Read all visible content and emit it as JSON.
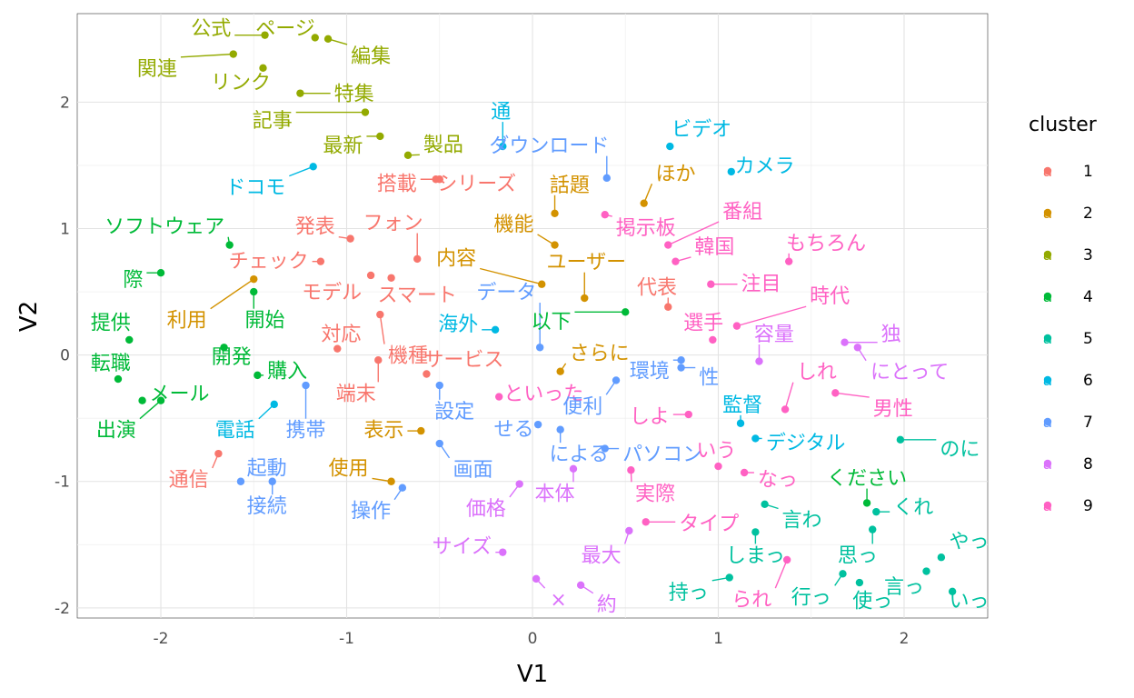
{
  "chart_data": {
    "type": "scatter",
    "title": "",
    "xlabel": "V1",
    "ylabel": "V2",
    "xlim": [
      -2.45,
      2.45
    ],
    "ylim": [
      -2.08,
      2.7
    ],
    "x_ticks": [
      -2,
      -1,
      0,
      1,
      2
    ],
    "y_ticks": [
      -2,
      -1,
      0,
      1,
      2
    ],
    "x_tick_labels": [
      "-2",
      "-1",
      "0",
      "1",
      "2"
    ],
    "y_tick_labels": [
      "-2",
      "-1",
      "0",
      "1",
      "2"
    ],
    "grid": true,
    "legend": {
      "title": "cluster",
      "placement": "right",
      "glyph": "a",
      "entries": [
        {
          "label": "1",
          "color": "#F8766D"
        },
        {
          "label": "2",
          "color": "#D39200"
        },
        {
          "label": "3",
          "color": "#93AA00"
        },
        {
          "label": "4",
          "color": "#00BA38"
        },
        {
          "label": "5",
          "color": "#00C19F"
        },
        {
          "label": "6",
          "color": "#00B9E3"
        },
        {
          "label": "7",
          "color": "#619CFF"
        },
        {
          "label": "8",
          "color": "#DB72FB"
        },
        {
          "label": "9",
          "color": "#FF61C3"
        }
      ]
    },
    "points": [
      {
        "label": "公式",
        "cluster": 3,
        "x": -1.44,
        "y": 2.53,
        "lx": -1.73,
        "ly": 2.59
      },
      {
        "label": "ページ",
        "cluster": 3,
        "x": -1.17,
        "y": 2.51,
        "lx": -1.33,
        "ly": 2.59
      },
      {
        "label": "編集",
        "cluster": 3,
        "x": -1.1,
        "y": 2.5,
        "lx": -0.87,
        "ly": 2.37
      },
      {
        "label": "関連",
        "cluster": 3,
        "x": -1.61,
        "y": 2.38,
        "lx": -2.02,
        "ly": 2.27
      },
      {
        "label": "リンク",
        "cluster": 3,
        "x": -1.45,
        "y": 2.27,
        "lx": -1.57,
        "ly": 2.16
      },
      {
        "label": "特集",
        "cluster": 3,
        "x": -1.25,
        "y": 2.07,
        "lx": -0.96,
        "ly": 2.07
      },
      {
        "label": "記事",
        "cluster": 3,
        "x": -0.9,
        "y": 1.92,
        "lx": -1.4,
        "ly": 1.86
      },
      {
        "label": "最新",
        "cluster": 3,
        "x": -0.82,
        "y": 1.73,
        "lx": -1.02,
        "ly": 1.66
      },
      {
        "label": "製品",
        "cluster": 3,
        "x": -0.67,
        "y": 1.58,
        "lx": -0.48,
        "ly": 1.67
      },
      {
        "label": "ドコモ",
        "cluster": 6,
        "x": -1.18,
        "y": 1.49,
        "lx": -1.49,
        "ly": 1.33
      },
      {
        "label": "通",
        "cluster": 6,
        "x": -0.16,
        "y": 1.65,
        "lx": -0.17,
        "ly": 1.93
      },
      {
        "label": "ダウンロード",
        "cluster": 7,
        "x": 0.4,
        "y": 1.4,
        "lx": 0.09,
        "ly": 1.66
      },
      {
        "label": "ビデオ",
        "cluster": 6,
        "x": 0.74,
        "y": 1.65,
        "lx": 0.91,
        "ly": 1.79
      },
      {
        "label": "カメラ",
        "cluster": 6,
        "x": 1.07,
        "y": 1.45,
        "lx": 1.25,
        "ly": 1.5
      },
      {
        "label": "ほか",
        "cluster": 2,
        "x": 0.6,
        "y": 1.2,
        "lx": 0.77,
        "ly": 1.44
      },
      {
        "label": "搭載",
        "cluster": 1,
        "x": -0.52,
        "y": 1.39,
        "lx": -0.73,
        "ly": 1.36
      },
      {
        "label": "シリーズ",
        "cluster": 1,
        "x": -0.5,
        "y": 1.39,
        "lx": -0.3,
        "ly": 1.36
      },
      {
        "label": "話題",
        "cluster": 2,
        "x": 0.12,
        "y": 1.12,
        "lx": 0.2,
        "ly": 1.35
      },
      {
        "label": "番組",
        "cluster": 9,
        "x": 0.73,
        "y": 0.87,
        "lx": 1.13,
        "ly": 1.14
      },
      {
        "label": "発表",
        "cluster": 1,
        "x": -0.98,
        "y": 0.92,
        "lx": -1.17,
        "ly": 1.02
      },
      {
        "label": "フォン",
        "cluster": 1,
        "x": -0.62,
        "y": 0.76,
        "lx": -0.75,
        "ly": 1.05
      },
      {
        "label": "ソフトウェア",
        "cluster": 4,
        "x": -1.63,
        "y": 0.87,
        "lx": -1.98,
        "ly": 1.02
      },
      {
        "label": "機能",
        "cluster": 2,
        "x": 0.12,
        "y": 0.87,
        "lx": -0.1,
        "ly": 1.04
      },
      {
        "label": "掲示板",
        "cluster": 9,
        "x": 0.39,
        "y": 1.11,
        "lx": 0.61,
        "ly": 1.01
      },
      {
        "label": "韓国",
        "cluster": 9,
        "x": 0.77,
        "y": 0.74,
        "lx": 0.98,
        "ly": 0.86
      },
      {
        "label": "もちろん",
        "cluster": 9,
        "x": 1.38,
        "y": 0.74,
        "lx": 1.58,
        "ly": 0.89
      },
      {
        "label": "チェック",
        "cluster": 1,
        "x": -1.14,
        "y": 0.74,
        "lx": -1.42,
        "ly": 0.75
      },
      {
        "label": "内容",
        "cluster": 2,
        "x": 0.05,
        "y": 0.56,
        "lx": -0.41,
        "ly": 0.77
      },
      {
        "label": "ユーザー",
        "cluster": 2,
        "x": 0.28,
        "y": 0.45,
        "lx": 0.29,
        "ly": 0.74
      },
      {
        "label": "際",
        "cluster": 4,
        "x": -2.0,
        "y": 0.65,
        "lx": -2.15,
        "ly": 0.6
      },
      {
        "label": "モデル",
        "cluster": 1,
        "x": -0.87,
        "y": 0.63,
        "lx": -1.08,
        "ly": 0.5
      },
      {
        "label": "スマート",
        "cluster": 1,
        "x": -0.76,
        "y": 0.61,
        "lx": -0.62,
        "ly": 0.48
      },
      {
        "label": "データ",
        "cluster": 7,
        "x": 0.04,
        "y": 0.06,
        "lx": -0.14,
        "ly": 0.5
      },
      {
        "label": "代表",
        "cluster": 1,
        "x": 0.73,
        "y": 0.38,
        "lx": 0.67,
        "ly": 0.54
      },
      {
        "label": "注目",
        "cluster": 9,
        "x": 0.96,
        "y": 0.56,
        "lx": 1.23,
        "ly": 0.57
      },
      {
        "label": "時代",
        "cluster": 9,
        "x": 1.1,
        "y": 0.23,
        "lx": 1.6,
        "ly": 0.47
      },
      {
        "label": "提供",
        "cluster": 4,
        "x": -2.17,
        "y": 0.12,
        "lx": -2.27,
        "ly": 0.26
      },
      {
        "label": "利用",
        "cluster": 2,
        "x": -1.5,
        "y": 0.6,
        "lx": -1.86,
        "ly": 0.28
      },
      {
        "label": "開始",
        "cluster": 4,
        "x": -1.5,
        "y": 0.5,
        "lx": -1.44,
        "ly": 0.28
      },
      {
        "label": "海外",
        "cluster": 6,
        "x": -0.2,
        "y": 0.2,
        "lx": -0.4,
        "ly": 0.25
      },
      {
        "label": "以下",
        "cluster": 4,
        "x": 0.5,
        "y": 0.34,
        "lx": 0.1,
        "ly": 0.27
      },
      {
        "label": "選手",
        "cluster": 9,
        "x": 0.97,
        "y": 0.12,
        "lx": 0.92,
        "ly": 0.26
      },
      {
        "label": "容量",
        "cluster": 8,
        "x": 1.22,
        "y": -0.05,
        "lx": 1.3,
        "ly": 0.17
      },
      {
        "label": "独",
        "cluster": 8,
        "x": 1.68,
        "y": 0.1,
        "lx": 1.93,
        "ly": 0.17
      },
      {
        "label": "対応",
        "cluster": 1,
        "x": -1.05,
        "y": 0.05,
        "lx": -1.03,
        "ly": 0.17
      },
      {
        "label": "機種",
        "cluster": 1,
        "x": -0.82,
        "y": 0.32,
        "lx": -0.67,
        "ly": 0.0
      },
      {
        "label": "サービス",
        "cluster": 1,
        "x": -0.57,
        "y": -0.15,
        "lx": -0.37,
        "ly": -0.03
      },
      {
        "label": "さらに",
        "cluster": 2,
        "x": 0.15,
        "y": -0.13,
        "lx": 0.36,
        "ly": 0.02
      },
      {
        "label": "転職",
        "cluster": 4,
        "x": -2.23,
        "y": -0.19,
        "lx": -2.27,
        "ly": -0.06
      },
      {
        "label": "開発",
        "cluster": 4,
        "x": -1.66,
        "y": 0.06,
        "lx": -1.62,
        "ly": -0.01
      },
      {
        "label": "購入",
        "cluster": 4,
        "x": -1.48,
        "y": -0.16,
        "lx": -1.32,
        "ly": -0.12
      },
      {
        "label": "環境",
        "cluster": 7,
        "x": 0.8,
        "y": -0.04,
        "lx": 0.63,
        "ly": -0.12
      },
      {
        "label": "性",
        "cluster": 7,
        "x": 0.8,
        "y": -0.1,
        "lx": 0.95,
        "ly": -0.17
      },
      {
        "label": "しれ",
        "cluster": 9,
        "x": 1.36,
        "y": -0.43,
        "lx": 1.53,
        "ly": -0.13
      },
      {
        "label": "にとって",
        "cluster": 8,
        "x": 1.75,
        "y": 0.06,
        "lx": 2.03,
        "ly": -0.13
      },
      {
        "label": "端末",
        "cluster": 1,
        "x": -0.83,
        "y": -0.04,
        "lx": -0.95,
        "ly": -0.3
      },
      {
        "label": "メール",
        "cluster": 4,
        "x": -2.1,
        "y": -0.36,
        "lx": -1.9,
        "ly": -0.3
      },
      {
        "label": "といった",
        "cluster": 9,
        "x": -0.18,
        "y": -0.33,
        "lx": 0.06,
        "ly": -0.3
      },
      {
        "label": "設定",
        "cluster": 7,
        "x": -0.5,
        "y": -0.24,
        "lx": -0.42,
        "ly": -0.44
      },
      {
        "label": "便利",
        "cluster": 7,
        "x": 0.45,
        "y": -0.2,
        "lx": 0.27,
        "ly": -0.4
      },
      {
        "label": "監督",
        "cluster": 6,
        "x": 1.12,
        "y": -0.54,
        "lx": 1.13,
        "ly": -0.39
      },
      {
        "label": "男性",
        "cluster": 9,
        "x": 1.63,
        "y": -0.3,
        "lx": 1.94,
        "ly": -0.42
      },
      {
        "label": "しよ",
        "cluster": 9,
        "x": 0.84,
        "y": -0.47,
        "lx": 0.63,
        "ly": -0.48
      },
      {
        "label": "電話",
        "cluster": 6,
        "x": -1.39,
        "y": -0.39,
        "lx": -1.6,
        "ly": -0.59
      },
      {
        "label": "携帯",
        "cluster": 7,
        "x": -1.22,
        "y": -0.24,
        "lx": -1.22,
        "ly": -0.59
      },
      {
        "label": "表示",
        "cluster": 2,
        "x": -0.6,
        "y": -0.6,
        "lx": -0.8,
        "ly": -0.59
      },
      {
        "label": "せる",
        "cluster": 7,
        "x": 0.03,
        "y": -0.55,
        "lx": -0.1,
        "ly": -0.58
      },
      {
        "label": "出演",
        "cluster": 4,
        "x": -2.0,
        "y": -0.36,
        "lx": -2.24,
        "ly": -0.59
      },
      {
        "label": "デジタル",
        "cluster": 6,
        "x": 1.2,
        "y": -0.66,
        "lx": 1.47,
        "ly": -0.69
      },
      {
        "label": "のに",
        "cluster": 5,
        "x": 1.98,
        "y": -0.67,
        "lx": 2.3,
        "ly": -0.74
      },
      {
        "label": "による",
        "cluster": 7,
        "x": 0.15,
        "y": -0.59,
        "lx": 0.25,
        "ly": -0.78
      },
      {
        "label": "パソコン",
        "cluster": 7,
        "x": 0.39,
        "y": -0.74,
        "lx": 0.7,
        "ly": -0.78
      },
      {
        "label": "いう",
        "cluster": 9,
        "x": 1.0,
        "y": -0.88,
        "lx": 0.99,
        "ly": -0.75
      },
      {
        "label": "通信",
        "cluster": 1,
        "x": -1.69,
        "y": -0.78,
        "lx": -1.85,
        "ly": -0.98
      },
      {
        "label": "起動",
        "cluster": 7,
        "x": -1.57,
        "y": -1.0,
        "lx": -1.43,
        "ly": -0.89
      },
      {
        "label": "使用",
        "cluster": 2,
        "x": -0.76,
        "y": -1.0,
        "lx": -0.99,
        "ly": -0.89
      },
      {
        "label": "画面",
        "cluster": 7,
        "x": -0.5,
        "y": -0.7,
        "lx": -0.32,
        "ly": -0.9
      },
      {
        "label": "なっ",
        "cluster": 9,
        "x": 1.14,
        "y": -0.93,
        "lx": 1.32,
        "ly": -0.98
      },
      {
        "label": "ください",
        "cluster": 4,
        "x": 1.8,
        "y": -1.17,
        "lx": 1.8,
        "ly": -0.97
      },
      {
        "label": "本体",
        "cluster": 8,
        "x": 0.22,
        "y": -0.9,
        "lx": 0.12,
        "ly": -1.09
      },
      {
        "label": "実際",
        "cluster": 9,
        "x": 0.53,
        "y": -0.91,
        "lx": 0.66,
        "ly": -1.09
      },
      {
        "label": "接続",
        "cluster": 7,
        "x": -1.4,
        "y": -1.0,
        "lx": -1.43,
        "ly": -1.19
      },
      {
        "label": "操作",
        "cluster": 7,
        "x": -0.7,
        "y": -1.05,
        "lx": -0.87,
        "ly": -1.23
      },
      {
        "label": "価格",
        "cluster": 8,
        "x": -0.07,
        "y": -1.02,
        "lx": -0.25,
        "ly": -1.21
      },
      {
        "label": "くれ",
        "cluster": 5,
        "x": 1.85,
        "y": -1.24,
        "lx": 2.05,
        "ly": -1.2
      },
      {
        "label": "言わ",
        "cluster": 5,
        "x": 1.25,
        "y": -1.18,
        "lx": 1.45,
        "ly": -1.3
      },
      {
        "label": "タイプ",
        "cluster": 9,
        "x": 0.61,
        "y": -1.32,
        "lx": 0.95,
        "ly": -1.33
      },
      {
        "label": "サイズ",
        "cluster": 8,
        "x": -0.16,
        "y": -1.56,
        "lx": -0.38,
        "ly": -1.51
      },
      {
        "label": "最大",
        "cluster": 8,
        "x": 0.52,
        "y": -1.39,
        "lx": 0.37,
        "ly": -1.58
      },
      {
        "label": "しまっ",
        "cluster": 5,
        "x": 1.2,
        "y": -1.4,
        "lx": 1.2,
        "ly": -1.58
      },
      {
        "label": "思っ",
        "cluster": 5,
        "x": 1.83,
        "y": -1.38,
        "lx": 1.75,
        "ly": -1.58
      },
      {
        "label": "やっ",
        "cluster": 5,
        "x": 2.2,
        "y": -1.6,
        "lx": 2.35,
        "ly": -1.47
      },
      {
        "label": "持っ",
        "cluster": 5,
        "x": 1.06,
        "y": -1.76,
        "lx": 0.84,
        "ly": -1.87
      },
      {
        "label": "られ",
        "cluster": 9,
        "x": 1.37,
        "y": -1.62,
        "lx": 1.18,
        "ly": -1.93
      },
      {
        "label": "行っ",
        "cluster": 5,
        "x": 1.67,
        "y": -1.73,
        "lx": 1.5,
        "ly": -1.91
      },
      {
        "label": "使っ",
        "cluster": 5,
        "x": 1.76,
        "y": -1.8,
        "lx": 1.83,
        "ly": -1.94
      },
      {
        "label": "言っ",
        "cluster": 5,
        "x": 2.12,
        "y": -1.71,
        "lx": 2.0,
        "ly": -1.83
      },
      {
        "label": "いっ",
        "cluster": 5,
        "x": 2.26,
        "y": -1.87,
        "lx": 2.35,
        "ly": -1.94
      },
      {
        "label": "×",
        "cluster": 8,
        "x": 0.02,
        "y": -1.77,
        "lx": 0.14,
        "ly": -1.93
      },
      {
        "label": "約",
        "cluster": 8,
        "x": 0.26,
        "y": -1.82,
        "lx": 0.4,
        "ly": -1.97
      }
    ]
  }
}
